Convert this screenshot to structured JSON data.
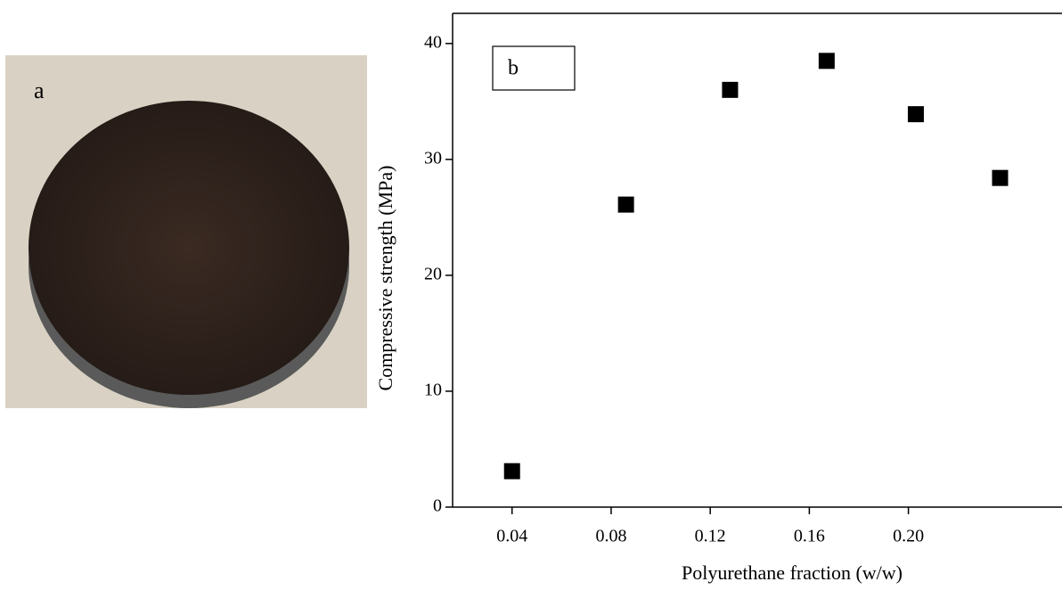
{
  "panel_a": {
    "label": "a"
  },
  "chart_data": {
    "type": "scatter",
    "panel_label": "b",
    "x_label": "Polyurethane fraction (w/w)",
    "y_label": "Compressive strength (MPa)",
    "x": [
      0.04,
      0.086,
      0.128,
      0.167,
      0.203,
      0.237
    ],
    "values": [
      3.1,
      26.1,
      36.0,
      38.5,
      33.9,
      28.4
    ],
    "color": "#000000",
    "marker": "square",
    "xlim": [
      0.016,
      0.262
    ],
    "ylim": [
      0,
      42.6
    ],
    "xticks": [
      0.04,
      0.08,
      0.12,
      0.16,
      {
        "value": 0.2,
        "label": "0.20"
      }
    ],
    "yticks": [
      0,
      10,
      20,
      30,
      40
    ]
  }
}
